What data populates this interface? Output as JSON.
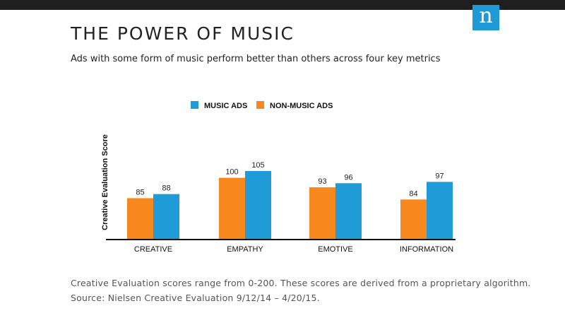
{
  "header": {
    "title": "THE POWER OF MUSIC",
    "subtitle": "Ads with some form of music perform better than others across four key metrics",
    "logo_letter": "n",
    "logo_color": "#1e9ad6"
  },
  "chart_data": {
    "type": "bar",
    "title": "",
    "xlabel": "",
    "ylabel": "Creative Evaluation Score",
    "categories": [
      "CREATIVE",
      "EMPATHY",
      "EMOTIVE",
      "INFORMATION"
    ],
    "series": [
      {
        "name": "NON-MUSIC ADS",
        "values": [
          85,
          100,
          93,
          84
        ],
        "color": "#f7881d"
      },
      {
        "name": "MUSIC ADS",
        "values": [
          88,
          105,
          96,
          97
        ],
        "color": "#1f9bd7"
      }
    ],
    "legend_order": [
      "MUSIC ADS",
      "NON-MUSIC ADS"
    ],
    "legend_position": "top",
    "grid": false,
    "ylim": [
      55,
      110
    ]
  },
  "footer": {
    "note": "Creative Evaluation scores range from 0-200. These scores are derived from a proprietary algorithm.",
    "source": "Source:  Nielsen Creative Evaluation 9/12/14 – 4/20/15."
  }
}
